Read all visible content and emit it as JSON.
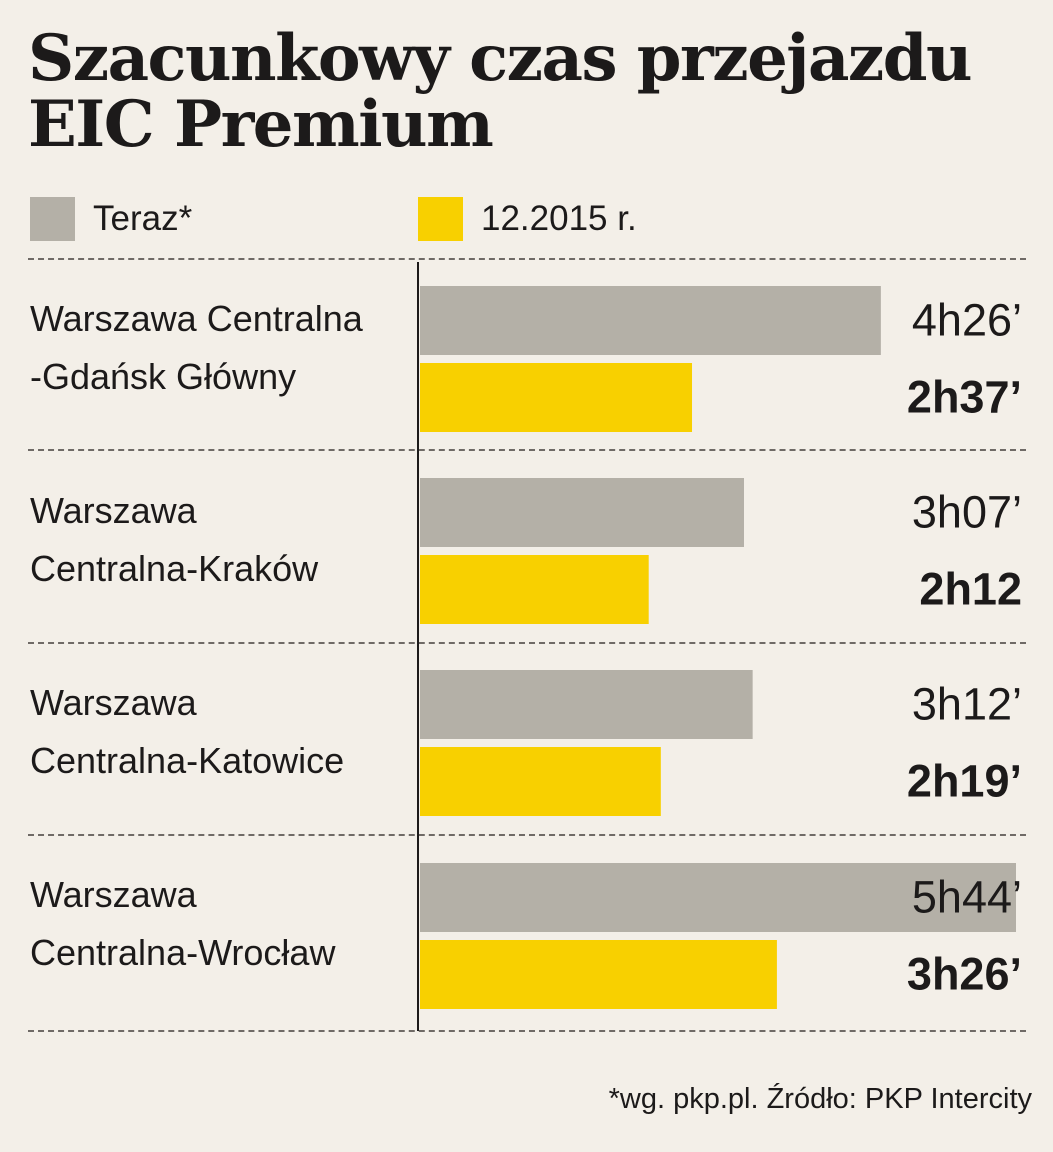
{
  "title_lines": [
    "Szacunkowy czas przejazdu",
    "EIC Premium"
  ],
  "legend": [
    {
      "label": "Teraz*",
      "color": "#b4b0a7"
    },
    {
      "label": "12.2015 r.",
      "color": "#f8d000"
    }
  ],
  "source": "*wg. pkp.pl. Źródło: PKP Intercity",
  "chart_data": {
    "type": "bar",
    "orientation": "horizontal",
    "title": "Szacunkowy czas przejazdu EIC Premium",
    "unit": "minutes",
    "categories": [
      [
        "Warszawa Centralna",
        "-Gdańsk Główny"
      ],
      [
        "Warszawa",
        "Centralna-Kraków"
      ],
      [
        "Warszawa",
        "Centralna-Katowice"
      ],
      [
        "Warszawa",
        "Centralna-Wrocław"
      ]
    ],
    "series": [
      {
        "name": "Teraz*",
        "color": "#b4b0a7",
        "values": [
          266,
          187,
          192,
          344
        ],
        "labels": [
          "4h26’",
          "3h07’",
          "3h12’",
          "5h44’"
        ],
        "label_weight": "normal"
      },
      {
        "name": "12.2015 r.",
        "color": "#f8d000",
        "values": [
          157,
          132,
          139,
          206
        ],
        "labels": [
          "2h37’",
          "2h12",
          "2h19’",
          "3h26’"
        ],
        "label_weight": "bold"
      }
    ],
    "xlim": [
      0,
      344
    ],
    "grid": false,
    "legend_position": "top-left"
  }
}
